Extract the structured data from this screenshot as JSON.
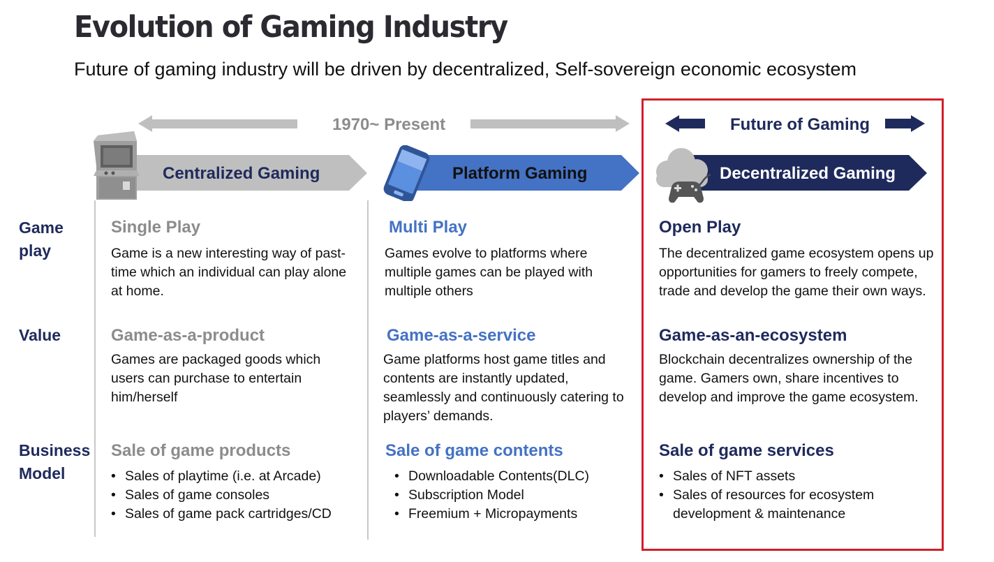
{
  "title": "Evolution of Gaming Industry",
  "subtitle": "Future of gaming industry will be driven by decentralized, Self-sovereign economic ecosystem",
  "timeline": {
    "past_label": "1970~ Present",
    "future_label": "Future of Gaming"
  },
  "eras": [
    {
      "label": "Centralized Gaming",
      "icon": "arcade-machine-icon",
      "color": "#bfbfbf"
    },
    {
      "label": "Platform Gaming",
      "icon": "smartphone-icon",
      "color": "#4472c4"
    },
    {
      "label": "Decentralized Gaming",
      "icon": "cloud-gamepad-icon",
      "color": "#1f2a5c"
    }
  ],
  "row_labels": {
    "gameplay": "Game\nplay",
    "value": "Value",
    "business": "Business\nModel"
  },
  "columns": [
    {
      "gameplay_head": "Single Play",
      "gameplay_text": "Game is a new interesting  way of past-time which an individual can play alone at home.",
      "value_head": "Game-as-a-product",
      "value_text": "Games are packaged goods which users can purchase to entertain him/herself",
      "business_head": "Sale of game products",
      "business_items": [
        "Sales of playtime (i.e. at Arcade)",
        "Sales of game consoles",
        "Sales of game pack cartridges/CD"
      ]
    },
    {
      "gameplay_head": "Multi Play",
      "gameplay_text": "Games evolve to platforms where multiple games can be played with multiple others",
      "value_head": "Game-as-a-service",
      "value_text": "Game platforms host game titles and contents are instantly updated, seamlessly and continuously catering to players’ demands.",
      "business_head": "Sale of game contents",
      "business_items": [
        "Downloadable Contents(DLC)",
        "Subscription  Model",
        "Freemium +  Micropayments"
      ]
    },
    {
      "gameplay_head": "Open Play",
      "gameplay_text": "The decentralized  game ecosystem opens up opportunities  for gamers to freely compete, trade and develop  the game their own ways.",
      "value_head": "Game-as-an-ecosystem",
      "value_text": "Blockchain decentralizes ownership of the game. Gamers own, share incentives to develop and improve the game ecosystem.",
      "business_head": "Sale of game services",
      "business_items": [
        "Sales of NFT assets",
        "Sales of resources for ecosystem\ndevelopment & maintenance"
      ]
    }
  ],
  "colors": {
    "gray": "#bfbfbf",
    "blue": "#4472c4",
    "navy": "#1f2a5c",
    "highlight_border": "#d21f2b"
  }
}
